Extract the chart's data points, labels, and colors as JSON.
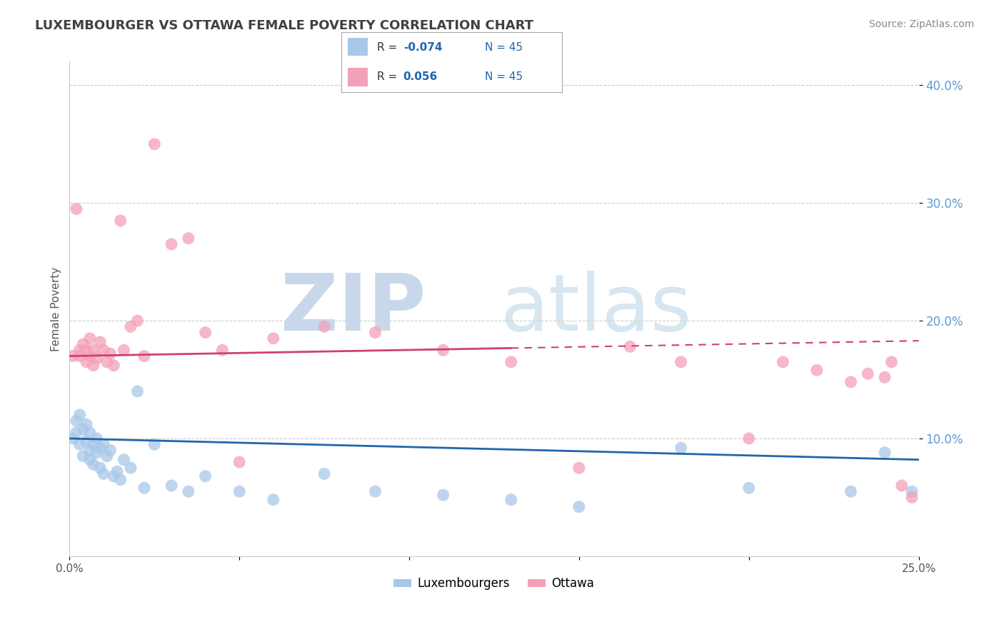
{
  "title": "LUXEMBOURGER VS OTTAWA FEMALE POVERTY CORRELATION CHART",
  "source": "Source: ZipAtlas.com",
  "ylabel": "Female Poverty",
  "xlim": [
    0.0,
    0.25
  ],
  "ylim": [
    0.0,
    0.42
  ],
  "yticks": [
    0.1,
    0.2,
    0.3,
    0.4
  ],
  "ytick_labels": [
    "10.0%",
    "20.0%",
    "30.0%",
    "40.0%"
  ],
  "xticks": [
    0.0,
    0.05,
    0.1,
    0.15,
    0.2,
    0.25
  ],
  "legend_label1": "Luxembourgers",
  "legend_label2": "Ottawa",
  "color_blue": "#a8c8e8",
  "color_pink": "#f4a0b8",
  "color_blue_line": "#2166ac",
  "color_pink_line": "#d04070",
  "blue_x": [
    0.001,
    0.002,
    0.002,
    0.003,
    0.003,
    0.004,
    0.004,
    0.005,
    0.005,
    0.006,
    0.006,
    0.006,
    0.007,
    0.007,
    0.008,
    0.008,
    0.009,
    0.009,
    0.01,
    0.01,
    0.011,
    0.012,
    0.013,
    0.014,
    0.015,
    0.016,
    0.018,
    0.02,
    0.022,
    0.025,
    0.03,
    0.035,
    0.04,
    0.05,
    0.06,
    0.075,
    0.09,
    0.11,
    0.13,
    0.15,
    0.18,
    0.2,
    0.23,
    0.24,
    0.248
  ],
  "blue_y": [
    0.1,
    0.115,
    0.105,
    0.12,
    0.095,
    0.108,
    0.085,
    0.112,
    0.098,
    0.09,
    0.105,
    0.082,
    0.095,
    0.078,
    0.1,
    0.088,
    0.092,
    0.075,
    0.095,
    0.07,
    0.085,
    0.09,
    0.068,
    0.072,
    0.065,
    0.082,
    0.075,
    0.14,
    0.058,
    0.095,
    0.06,
    0.055,
    0.068,
    0.055,
    0.048,
    0.07,
    0.055,
    0.052,
    0.048,
    0.042,
    0.092,
    0.058,
    0.055,
    0.088,
    0.055
  ],
  "pink_x": [
    0.001,
    0.002,
    0.003,
    0.003,
    0.004,
    0.005,
    0.005,
    0.006,
    0.006,
    0.007,
    0.007,
    0.008,
    0.009,
    0.01,
    0.011,
    0.012,
    0.013,
    0.015,
    0.016,
    0.018,
    0.02,
    0.022,
    0.025,
    0.03,
    0.035,
    0.04,
    0.045,
    0.05,
    0.06,
    0.075,
    0.09,
    0.11,
    0.13,
    0.15,
    0.165,
    0.18,
    0.2,
    0.21,
    0.22,
    0.23,
    0.235,
    0.24,
    0.242,
    0.245,
    0.248
  ],
  "pink_y": [
    0.17,
    0.295,
    0.17,
    0.175,
    0.18,
    0.175,
    0.165,
    0.185,
    0.17,
    0.162,
    0.175,
    0.168,
    0.182,
    0.175,
    0.165,
    0.172,
    0.162,
    0.285,
    0.175,
    0.195,
    0.2,
    0.17,
    0.35,
    0.265,
    0.27,
    0.19,
    0.175,
    0.08,
    0.185,
    0.195,
    0.19,
    0.175,
    0.165,
    0.075,
    0.178,
    0.165,
    0.1,
    0.165,
    0.158,
    0.148,
    0.155,
    0.152,
    0.165,
    0.06,
    0.05
  ]
}
